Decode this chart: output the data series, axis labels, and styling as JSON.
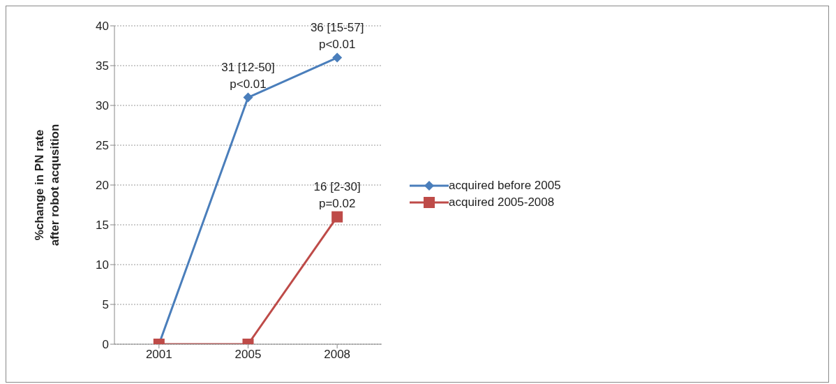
{
  "chart_data": {
    "type": "line",
    "ylabel": "%change in PN rate after robot acqusition",
    "categories": [
      "2001",
      "2005",
      "2008"
    ],
    "series": [
      {
        "name": "acquired before 2005",
        "color": "#4a7ebb",
        "values": [
          0,
          31,
          36
        ],
        "marker": "diamond"
      },
      {
        "name": "acquired 2005-2008",
        "color": "#be4b48",
        "values": [
          0,
          0,
          16
        ],
        "marker": "square"
      }
    ],
    "annotations": [
      {
        "text": "31 [12-50]\np<0.01",
        "x": "2005",
        "y": 31
      },
      {
        "text": "36 [15-57]\np<0.01",
        "x": "2008",
        "y": 36
      },
      {
        "text": "16 [2-30]\np=0.02",
        "x": "2008",
        "y": 16
      }
    ],
    "ylim": [
      0,
      40
    ],
    "yticks": [
      0,
      5,
      10,
      15,
      20,
      25,
      30,
      35,
      40
    ],
    "grid": "y",
    "legend": "right",
    "line_style": "solid"
  }
}
